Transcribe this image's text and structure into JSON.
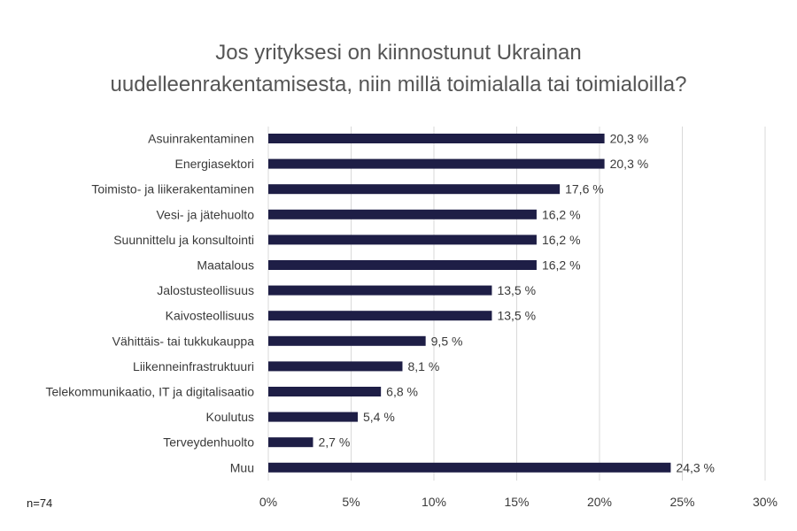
{
  "chart_data": {
    "type": "bar",
    "orientation": "horizontal",
    "title": [
      "Jos yrityksesi on kiinnostunut Ukrainan",
      "uudelleenrakentamisesta, niin millä toimialalla tai toimialoilla?"
    ],
    "categories": [
      "Asuinrakentaminen",
      "Energiasektori",
      "Toimisto- ja liikerakentaminen",
      "Vesi- ja jätehuolto",
      "Suunnittelu ja konsultointi",
      "Maatalous",
      "Jalostusteollisuus",
      "Kaivosteollisuus",
      "Vähittäis- tai tukkukauppa",
      "Liikenneinfrastruktuuri",
      "Telekommunikaatio, IT ja digitalisaatio",
      "Koulutus",
      "Terveydenhuolto",
      "Muu"
    ],
    "values": [
      20.3,
      20.3,
      17.6,
      16.2,
      16.2,
      16.2,
      13.5,
      13.5,
      9.5,
      8.1,
      6.8,
      5.4,
      2.7,
      24.3
    ],
    "data_labels": [
      "20,3 %",
      "20,3 %",
      "17,6 %",
      "16,2 %",
      "16,2 %",
      "16,2 %",
      "13,5 %",
      "13,5 %",
      "9,5 %",
      "8,1 %",
      "6,8 %",
      "5,4 %",
      "2,7 %",
      "24,3 %"
    ],
    "x_ticks": [
      0,
      5,
      10,
      15,
      20,
      25,
      30
    ],
    "x_tick_labels": [
      "0%",
      "5%",
      "10%",
      "15%",
      "20%",
      "25%",
      "30%"
    ],
    "xlim": [
      0,
      30
    ],
    "grid": true,
    "bar_color": "#1e1e46",
    "grid_color": "#d9d9d9",
    "note": "n=74"
  }
}
